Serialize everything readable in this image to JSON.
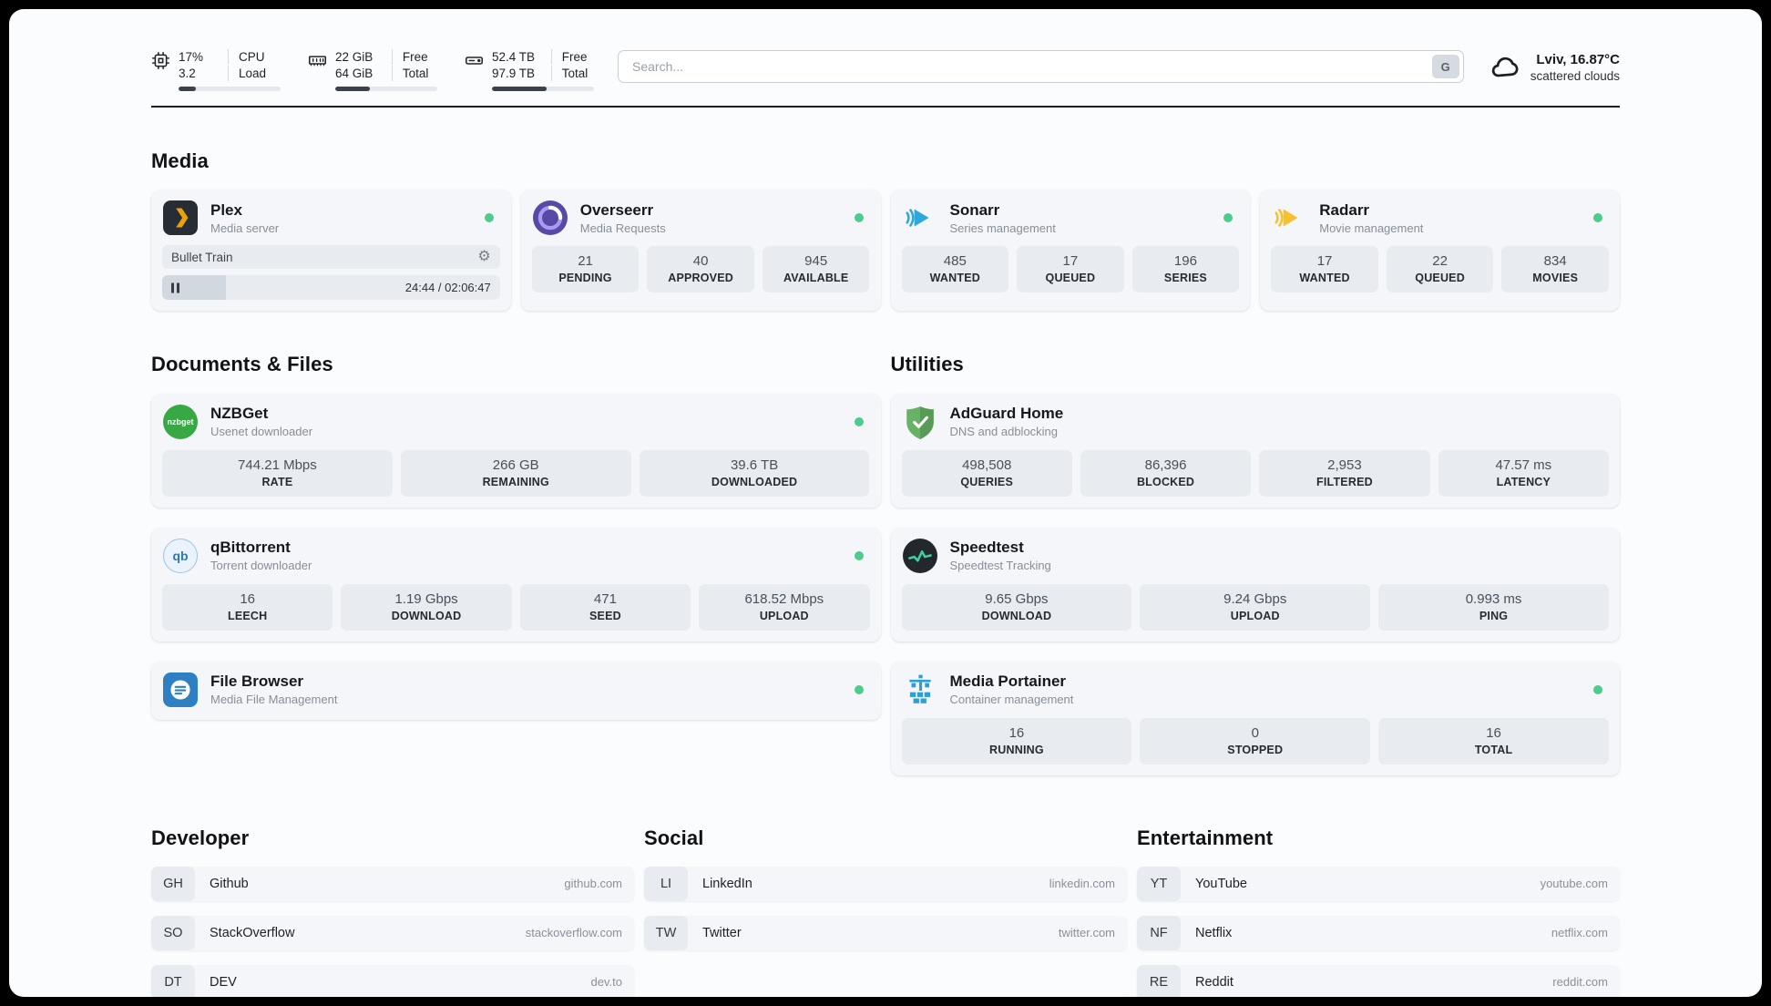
{
  "topbar": {
    "cpu": {
      "icon": "cpu-chip-icon",
      "percent": "17%",
      "load": "3.2",
      "label_top": "CPU",
      "label_bottom": "Load",
      "bar_percent": 17
    },
    "ram": {
      "icon": "ram-icon",
      "free": "22 GiB",
      "total": "64 GiB",
      "label_top": "Free",
      "label_bottom": "Total",
      "bar_percent": 34
    },
    "disk": {
      "icon": "hard-drive-icon",
      "free": "52.4 TB",
      "total": "97.9 TB",
      "label_top": "Free",
      "label_bottom": "Total",
      "bar_percent": 54
    },
    "search": {
      "placeholder": "Search...",
      "button_label": "G"
    },
    "weather": {
      "icon": "cloud-icon",
      "location": "Lviv, 16.87°C",
      "condition": "scattered clouds"
    }
  },
  "icons": {
    "gear": "⚙"
  },
  "colors": {
    "status_online": "#4ecb8d",
    "plex_yellow": "#e8a30c",
    "sonarr_blue": "#2fa7da",
    "radarr_yellow": "#f6c12e",
    "adguard_green": "#67b365",
    "portainer_blue": "#2a9fd8"
  },
  "media": {
    "title": "Media",
    "plex": {
      "name": "Plex",
      "subtitle": "Media server",
      "now_playing": "Bullet Train",
      "time": "24:44 / 02:06:47",
      "progress_percent": 19
    },
    "overseerr": {
      "name": "Overseerr",
      "subtitle": "Media Requests",
      "stats": [
        {
          "value": "21",
          "label": "PENDING"
        },
        {
          "value": "40",
          "label": "APPROVED"
        },
        {
          "value": "945",
          "label": "AVAILABLE"
        }
      ]
    },
    "sonarr": {
      "name": "Sonarr",
      "subtitle": "Series management",
      "stats": [
        {
          "value": "485",
          "label": "WANTED"
        },
        {
          "value": "17",
          "label": "QUEUED"
        },
        {
          "value": "196",
          "label": "SERIES"
        }
      ]
    },
    "radarr": {
      "name": "Radarr",
      "subtitle": "Movie management",
      "stats": [
        {
          "value": "17",
          "label": "WANTED"
        },
        {
          "value": "22",
          "label": "QUEUED"
        },
        {
          "value": "834",
          "label": "MOVIES"
        }
      ]
    }
  },
  "documents": {
    "title": "Documents & Files",
    "nzbget": {
      "name": "NZBGet",
      "subtitle": "Usenet downloader",
      "icon_label": "nzbget",
      "stats": [
        {
          "value": "744.21 Mbps",
          "label": "RATE"
        },
        {
          "value": "266 GB",
          "label": "REMAINING"
        },
        {
          "value": "39.6 TB",
          "label": "DOWNLOADED"
        }
      ]
    },
    "qbittorrent": {
      "name": "qBittorrent",
      "subtitle": "Torrent downloader",
      "icon_label": "qb",
      "stats": [
        {
          "value": "16",
          "label": "LEECH"
        },
        {
          "value": "1.19 Gbps",
          "label": "DOWNLOAD"
        },
        {
          "value": "471",
          "label": "SEED"
        },
        {
          "value": "618.52 Mbps",
          "label": "UPLOAD"
        }
      ]
    },
    "filebrowser": {
      "name": "File Browser",
      "subtitle": "Media File Management"
    }
  },
  "utilities": {
    "title": "Utilities",
    "adguard": {
      "name": "AdGuard Home",
      "subtitle": "DNS and adblocking",
      "stats": [
        {
          "value": "498,508",
          "label": "QUERIES"
        },
        {
          "value": "86,396",
          "label": "BLOCKED"
        },
        {
          "value": "2,953",
          "label": "FILTERED"
        },
        {
          "value": "47.57 ms",
          "label": "LATENCY"
        }
      ]
    },
    "speedtest": {
      "name": "Speedtest",
      "subtitle": "Speedtest Tracking",
      "stats": [
        {
          "value": "9.65 Gbps",
          "label": "DOWNLOAD"
        },
        {
          "value": "9.24 Gbps",
          "label": "UPLOAD"
        },
        {
          "value": "0.993 ms",
          "label": "PING"
        }
      ]
    },
    "portainer": {
      "name": "Media Portainer",
      "subtitle": "Container management",
      "stats": [
        {
          "value": "16",
          "label": "RUNNING"
        },
        {
          "value": "0",
          "label": "STOPPED"
        },
        {
          "value": "16",
          "label": "TOTAL"
        }
      ]
    }
  },
  "bookmarks": [
    {
      "title": "Developer",
      "links": [
        {
          "abbr": "GH",
          "name": "Github",
          "domain": "github.com"
        },
        {
          "abbr": "SO",
          "name": "StackOverflow",
          "domain": "stackoverflow.com"
        },
        {
          "abbr": "DT",
          "name": "DEV",
          "domain": "dev.to"
        }
      ]
    },
    {
      "title": "Social",
      "links": [
        {
          "abbr": "LI",
          "name": "LinkedIn",
          "domain": "linkedin.com"
        },
        {
          "abbr": "TW",
          "name": "Twitter",
          "domain": "twitter.com"
        }
      ]
    },
    {
      "title": "Entertainment",
      "links": [
        {
          "abbr": "YT",
          "name": "YouTube",
          "domain": "youtube.com"
        },
        {
          "abbr": "NF",
          "name": "Netflix",
          "domain": "netflix.com"
        },
        {
          "abbr": "RE",
          "name": "Reddit",
          "domain": "reddit.com"
        }
      ]
    }
  ]
}
